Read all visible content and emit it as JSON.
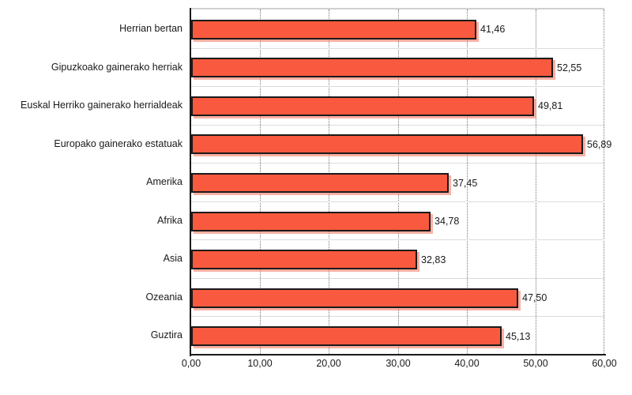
{
  "chart_data": {
    "type": "bar",
    "orientation": "horizontal",
    "title": "",
    "categories": [
      "Herrian bertan",
      "Gipuzkoako gainerako herriak",
      "Euskal Herriko gainerako herrialdeak",
      "Europako gainerako estatuak",
      "Amerika",
      "Afrika",
      "Asia",
      "Ozeania",
      "Guztira"
    ],
    "values": [
      41.46,
      52.55,
      49.81,
      56.89,
      37.45,
      34.78,
      32.83,
      47.5,
      45.13
    ],
    "value_labels": [
      "41,46",
      "52,55",
      "49,81",
      "56,89",
      "37,45",
      "34,78",
      "32,83",
      "47,50",
      "45,13"
    ],
    "xlim": [
      0,
      60
    ],
    "x_tick_values": [
      0,
      10,
      20,
      30,
      40,
      50,
      60
    ],
    "x_tick_labels": [
      "0,00",
      "10,00",
      "20,00",
      "30,00",
      "40,00",
      "50,00",
      "60,00"
    ],
    "grid": "vertical dotted lines at major ticks; light horizontal category separator lines",
    "legend": "none",
    "colors": {
      "bar_fill": "#F9593E",
      "bar_border": "#1A1A1A",
      "bar_shadow": "rgba(247,124,104,0.6)",
      "axis_line": "#1A1A1A",
      "gridline_dotted": "#777777",
      "row_separator": "#DCDCDC",
      "plot_top_border": "#CFCFCF",
      "text": "#1A1A1A",
      "background": "#FFFFFF"
    }
  }
}
